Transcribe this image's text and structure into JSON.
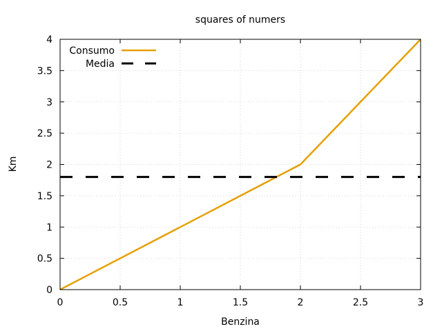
{
  "chart_data": {
    "type": "line",
    "title": "squares of numers",
    "xlabel": "Benzina",
    "ylabel": "Km",
    "xlim": [
      0,
      3
    ],
    "ylim": [
      0,
      4
    ],
    "x_ticks": [
      "0",
      "0.5",
      "1",
      "1.5",
      "2",
      "2.5",
      "3"
    ],
    "y_ticks": [
      "0",
      "0.5",
      "1",
      "1.5",
      "2",
      "2.5",
      "3",
      "3.5",
      "4"
    ],
    "grid": true,
    "legend_position": "top-left",
    "series": [
      {
        "name": "Consumo",
        "style": "solid",
        "color": "#e69f00",
        "x": [
          0,
          1,
          2,
          3
        ],
        "y": [
          0,
          1,
          2,
          4
        ]
      },
      {
        "name": "Media",
        "style": "dashed",
        "color": "#000000",
        "x": [
          0,
          3
        ],
        "y": [
          1.8,
          1.8
        ]
      }
    ]
  }
}
